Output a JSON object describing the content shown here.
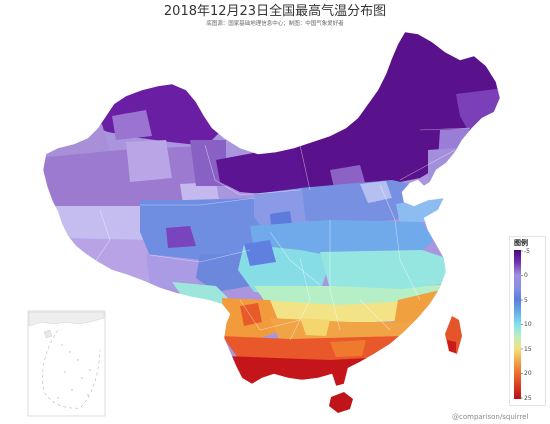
{
  "title": "2018年12月23日全国最高气温分布图",
  "subtitle": "底图源：国家基础地理信息中心；制图：中国气象爱好者",
  "legend": {
    "title": "图例",
    "ticks": [
      "-5",
      "0",
      "5",
      "10",
      "15",
      "20",
      "25"
    ],
    "colors": [
      "#4a0a7c",
      "#7233b2",
      "#9f8ee0",
      "#8591e6",
      "#5b7fdc",
      "#66aee8",
      "#80e2ee",
      "#bdf0bc",
      "#f5de7c",
      "#f3a444",
      "#ea6a2c",
      "#d63a22",
      "#b50f14"
    ]
  },
  "watermark": "@comparison/squirrel"
}
